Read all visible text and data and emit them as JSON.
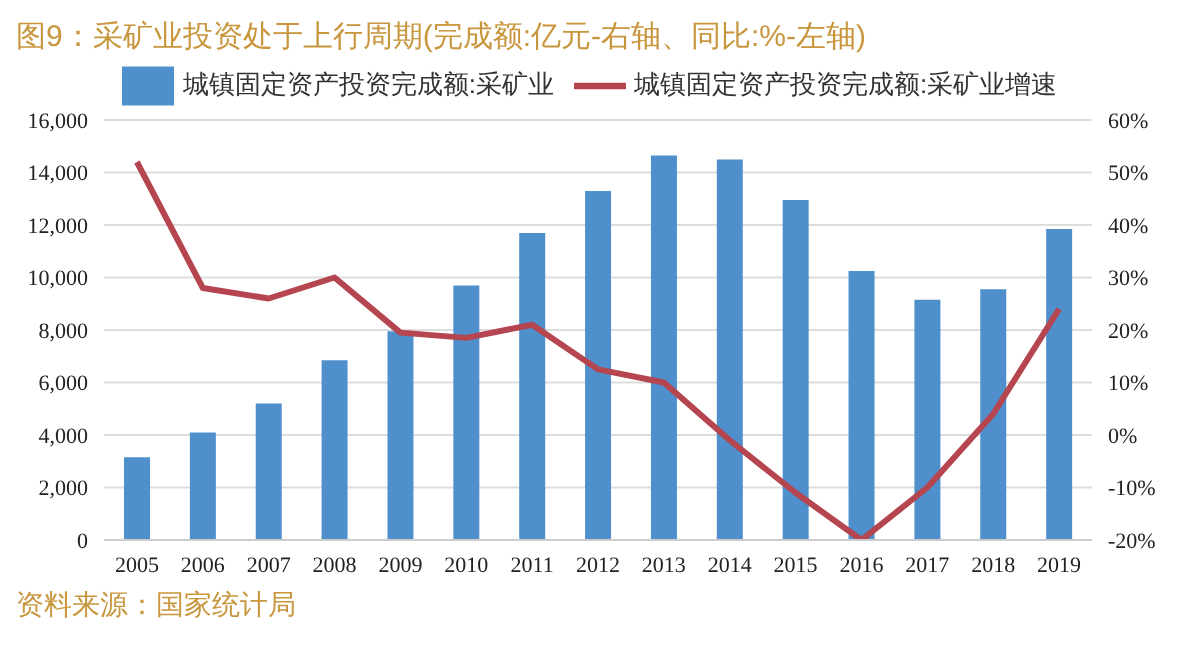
{
  "chart_data": {
    "type": "bar",
    "title": "图9：采矿业投资处于上行周期(完成额:亿元-右轴、同比:%-左轴)",
    "categories": [
      "2005",
      "2006",
      "2007",
      "2008",
      "2009",
      "2010",
      "2011",
      "2012",
      "2013",
      "2014",
      "2015",
      "2016",
      "2017",
      "2018",
      "2019"
    ],
    "series": [
      {
        "name": "城镇固定资产投资完成额:采矿业",
        "color": "#4f8fcc",
        "values": [
          3150,
          4100,
          5200,
          6850,
          7950,
          9700,
          11700,
          13300,
          14650,
          14500,
          12950,
          10250,
          9150,
          9550,
          11850
        ]
      },
      {
        "name": "城镇固定资产投资完成额:采矿业增速",
        "type": "line",
        "axis": "y2",
        "color": "#b5454f",
        "values": [
          52,
          28,
          26,
          30,
          19.5,
          18.5,
          21,
          12.5,
          10,
          -1,
          -11,
          -20,
          -10,
          4,
          24
        ]
      }
    ],
    "ylim": [
      0,
      16000
    ],
    "yticks": [
      {
        "value": 0,
        "label": "0"
      },
      {
        "value": 2000,
        "label": "2,000"
      },
      {
        "value": 4000,
        "label": "4,000"
      },
      {
        "value": 6000,
        "label": "6,000"
      },
      {
        "value": 8000,
        "label": "8,000"
      },
      {
        "value": 10000,
        "label": "10,000"
      },
      {
        "value": 12000,
        "label": "12,000"
      },
      {
        "value": 14000,
        "label": "14,000"
      },
      {
        "value": 16000,
        "label": "16,000"
      }
    ],
    "y2lim": [
      -20,
      60
    ],
    "y2ticks": [
      {
        "value": -20,
        "label": "-20%"
      },
      {
        "value": -10,
        "label": "-10%"
      },
      {
        "value": 0,
        "label": "0%"
      },
      {
        "value": 10,
        "label": "10%"
      },
      {
        "value": 20,
        "label": "20%"
      },
      {
        "value": 30,
        "label": "30%"
      },
      {
        "value": 40,
        "label": "40%"
      },
      {
        "value": 50,
        "label": "50%"
      },
      {
        "value": 60,
        "label": "60%"
      }
    ],
    "grid": "y",
    "legend": "top",
    "marker": "none",
    "annotations": [
      "资料来源：国家统计局"
    ]
  }
}
